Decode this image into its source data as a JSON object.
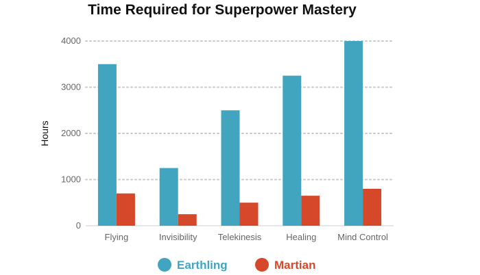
{
  "chart_data": {
    "type": "bar",
    "title": "Time Required for Superpower Mastery",
    "xlabel": "",
    "ylabel": "Hours",
    "categories": [
      "Flying",
      "Invisibility",
      "Telekinesis",
      "Healing",
      "Mind Control"
    ],
    "series": [
      {
        "name": "Earthling",
        "color": "#41a5bf",
        "values": [
          3500,
          1250,
          2500,
          3250,
          4000
        ]
      },
      {
        "name": "Martian",
        "color": "#d5482a",
        "values": [
          700,
          250,
          500,
          650,
          800
        ]
      }
    ],
    "ylim": [
      0,
      4000
    ],
    "yticks": [
      0,
      1000,
      2000,
      3000,
      4000
    ],
    "grid": true,
    "legend_position": "bottom-center"
  }
}
